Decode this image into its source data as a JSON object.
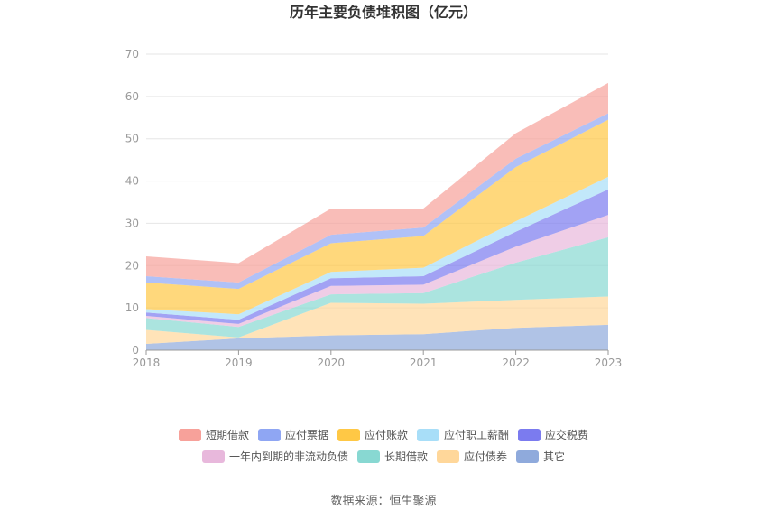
{
  "chart_data": {
    "type": "area",
    "stacked": true,
    "title": "历年主要负债堆积图（亿元）",
    "x": [
      "2018",
      "2019",
      "2020",
      "2021",
      "2022",
      "2023"
    ],
    "ylim": [
      0,
      70
    ],
    "yticks": [
      0,
      10,
      20,
      30,
      40,
      50,
      60,
      70
    ],
    "grid": true,
    "legend_position": "bottom",
    "series": [
      {
        "name": "其它",
        "color": "#8FAADC",
        "values": [
          1.5,
          2.8,
          3.5,
          3.8,
          5.3,
          6.0
        ]
      },
      {
        "name": "应付债券",
        "color": "#FFD79A",
        "values": [
          3.3,
          0.2,
          7.7,
          7.2,
          6.6,
          6.7
        ]
      },
      {
        "name": "长期借款",
        "color": "#88D8D2",
        "values": [
          2.8,
          2.5,
          2.0,
          2.5,
          8.8,
          14.0
        ]
      },
      {
        "name": "一年内到期的非流动负债",
        "color": "#E8B8DC",
        "values": [
          0.5,
          0.7,
          2.0,
          2.0,
          3.8,
          5.3
        ]
      },
      {
        "name": "应交税费",
        "color": "#7B7BEF",
        "values": [
          0.8,
          1.0,
          1.8,
          2.0,
          3.5,
          6.0
        ]
      },
      {
        "name": "应付职工薪酬",
        "color": "#A8DEF8",
        "values": [
          0.8,
          1.3,
          1.5,
          2.0,
          2.5,
          3.0
        ]
      },
      {
        "name": "应付账款",
        "color": "#FFC845",
        "values": [
          6.3,
          6.0,
          6.8,
          7.5,
          12.8,
          13.5
        ]
      },
      {
        "name": "应付票据",
        "color": "#8FA6F3",
        "values": [
          1.5,
          1.5,
          2.0,
          2.0,
          2.0,
          1.5
        ]
      },
      {
        "name": "短期借款",
        "color": "#F7A19A",
        "values": [
          4.7,
          4.6,
          6.2,
          4.5,
          6.0,
          7.2
        ]
      }
    ],
    "legend_order": [
      "短期借款",
      "应付票据",
      "应付账款",
      "应付职工薪酬",
      "应交税费",
      "一年内到期的非流动负债",
      "长期借款",
      "应付债券",
      "其它"
    ]
  },
  "source_text": "数据来源：恒生聚源"
}
